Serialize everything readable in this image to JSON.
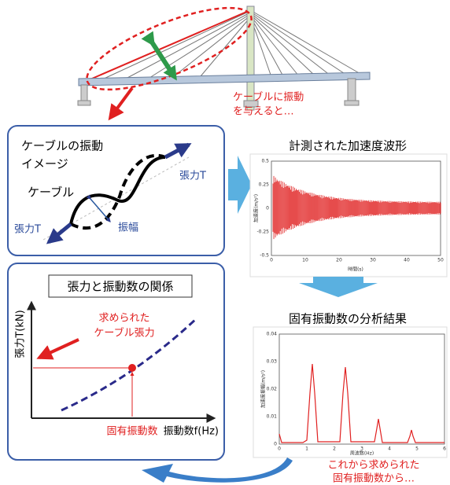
{
  "bridge": {
    "annotation": [
      "ケーブルに振動",
      "を与えると…"
    ]
  },
  "cable_image": {
    "title": [
      "ケーブルの振動",
      "イメージ"
    ],
    "cable_label": "ケーブル",
    "tension_labels": [
      "張力T",
      "張力T"
    ],
    "amplitude_label": "振幅"
  },
  "relation": {
    "title": "張力と振動数の関係",
    "y_axis_label": "張力T(kN)",
    "x_axis_label": "振動数f(Hz)",
    "tension_annotation": [
      "求められた",
      "ケーブル張力"
    ],
    "frequency_annotation": "固有振動数"
  },
  "waveform": {
    "title": "計測された加速度波形",
    "y_axis_label": "加速度(m/s²)",
    "x_axis_label": "時間(s)",
    "yticks": [
      "0.5",
      "0.25",
      "0",
      "-0.25",
      "-0.5"
    ],
    "xticks": [
      "0",
      "10",
      "20",
      "30",
      "40",
      "50"
    ]
  },
  "spectrum": {
    "title": "固有振動数の分析結果",
    "y_axis_label": "加速度振幅(m/s²)",
    "x_axis_label": "周波数(Hz)",
    "yticks": [
      "0.04",
      "0.03",
      "0.02",
      "0.01",
      "0"
    ],
    "xticks": [
      "0",
      "1",
      "2",
      "3",
      "4",
      "5",
      "6"
    ]
  },
  "footer_annotation": [
    "これから求められた",
    "固有振動数から…"
  ]
}
